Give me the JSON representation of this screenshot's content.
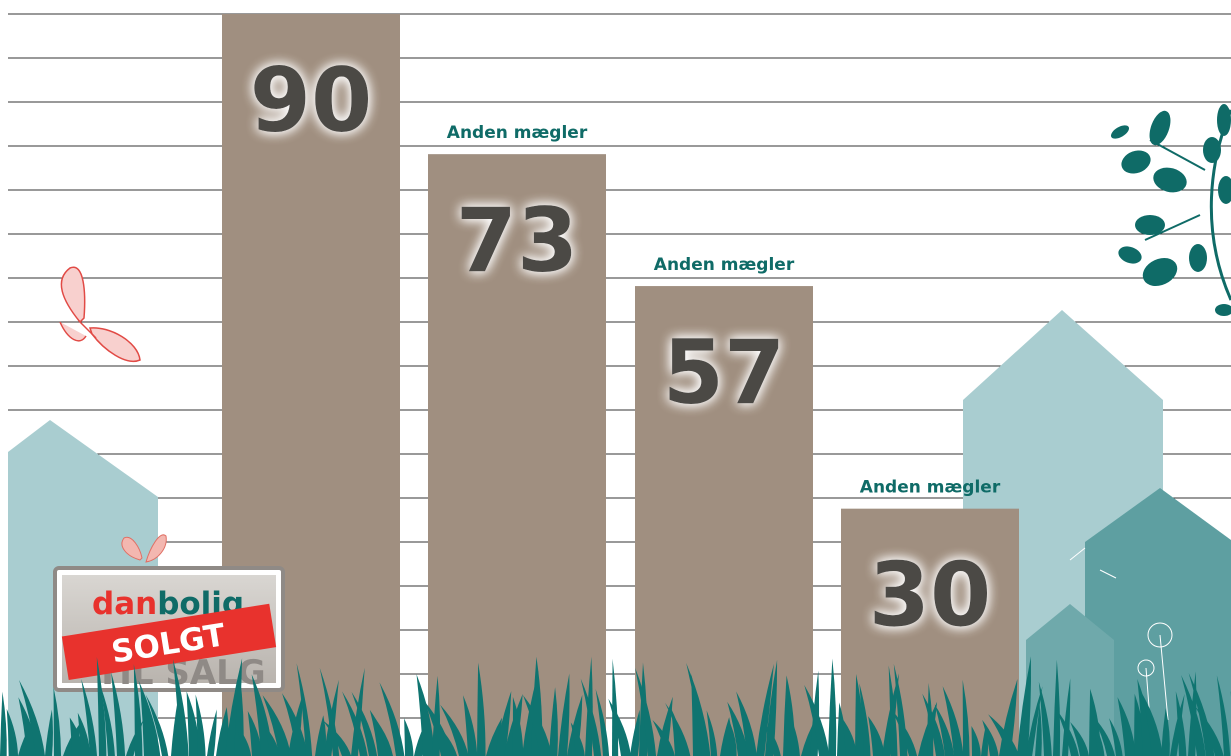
{
  "chart_data": {
    "type": "bar",
    "categories": [
      "",
      "Anden mægler",
      "Anden mægler",
      "Anden mægler"
    ],
    "values": [
      90,
      73,
      57,
      30
    ],
    "ylim": [
      0,
      100
    ],
    "grid": true,
    "title": "",
    "xlabel": "",
    "ylabel": ""
  },
  "sign": {
    "brand_prefix": "dan",
    "brand_suffix": "bolig",
    "banner": "SOLGT",
    "subtext": "TIL SALG"
  },
  "colors": {
    "bar": "#a08f80",
    "value_text": "#4b4845",
    "label_text": "#0f6b67",
    "grass": "#0f7470",
    "house_light": "#a9cdd0",
    "house_dark": "#5e9fa1",
    "banner": "#e8322d",
    "butterfly": "#e14a45"
  }
}
